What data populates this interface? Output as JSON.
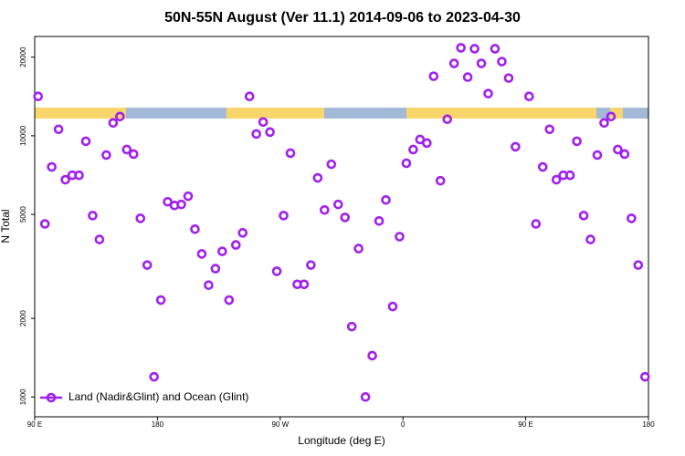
{
  "chart_data": {
    "type": "scatter",
    "title": "50N-55N August (Ver 11.1)   2014-09-06 to 2023-04-30",
    "x_label": "Longitude (deg E)",
    "y_label": "N Total",
    "log_y": true,
    "legend": "bottom left",
    "xlim": [
      90,
      540
    ],
    "ylim": [
      840,
      24000
    ],
    "xticks": [
      {
        "value": 90,
        "label": "90 E"
      },
      180,
      {
        "value": 270,
        "label": "90 W"
      },
      {
        "value": 360,
        "label": "0"
      },
      {
        "value": 450,
        "label": "90 E"
      },
      {
        "value": 540,
        "label": "180"
      }
    ],
    "yticks": [
      1000,
      2000,
      5000,
      10000,
      20000
    ],
    "x": [
      92.5,
      97.5,
      102.5,
      107.5,
      112.5,
      117.5,
      122.5,
      127.5,
      132.5,
      137.5,
      142.5,
      147.5,
      152.5,
      157.5,
      162.5,
      167.5,
      172.5,
      177.5,
      182.5,
      187.5,
      192.5,
      197.5,
      202.5,
      207.5,
      212.5,
      217.5,
      222.5,
      227.5,
      232.5,
      237.5,
      242.5,
      247.5,
      252.5,
      257.5,
      262.5,
      267.5,
      272.5,
      277.5,
      282.5,
      287.5,
      292.5,
      297.5,
      302.5,
      307.5,
      312.5,
      317.5,
      322.5,
      327.5,
      332.5,
      337.5,
      342.5,
      347.5,
      352.5,
      357.5,
      362.5,
      367.5,
      372.5,
      377.5,
      382.5,
      387.5,
      392.5,
      397.5,
      402.5,
      407.5,
      412.5,
      417.5,
      422.5,
      427.5,
      432.5,
      437.5,
      442.5,
      447.5,
      452.5,
      457.5,
      462.5,
      467.5,
      472.5,
      477.5,
      482.5,
      487.5,
      492.5,
      497.5,
      502.5,
      507.5,
      512.5,
      517.5,
      522.5,
      527.5,
      532.5,
      537.5
    ],
    "series": [
      {
        "name": "Land (Nadir&Glint) and Ocean (Glint)",
        "color": "#a020f0",
        "values": [
          14150,
          4600,
          7600,
          10590,
          6790,
          7060,
          7060,
          9530,
          4950,
          4010,
          8440,
          11200,
          11850,
          8860,
          8510,
          4830,
          3200,
          1195,
          2350,
          5590,
          5410,
          5460,
          5870,
          4390,
          3530,
          2680,
          3100,
          3610,
          2350,
          3820,
          4250,
          14150,
          10160,
          11290,
          10330,
          3030,
          4950,
          8580,
          2700,
          2700,
          3200,
          6900,
          5200,
          7780,
          5460,
          4870,
          1860,
          3700,
          1000,
          1440,
          4720,
          5680,
          2220,
          4110,
          7850,
          8860,
          9680,
          9380,
          16900,
          6730,
          11570,
          18930,
          21720,
          16770,
          21540,
          18930,
          14500,
          21540,
          19240,
          16630,
          9080,
          null,
          14150,
          4600,
          7600,
          10590,
          6790,
          7060,
          7060,
          9530,
          4950,
          4010,
          8440,
          11200,
          11850,
          8860,
          8510,
          4830,
          3200,
          1195
        ]
      }
    ]
  }
}
